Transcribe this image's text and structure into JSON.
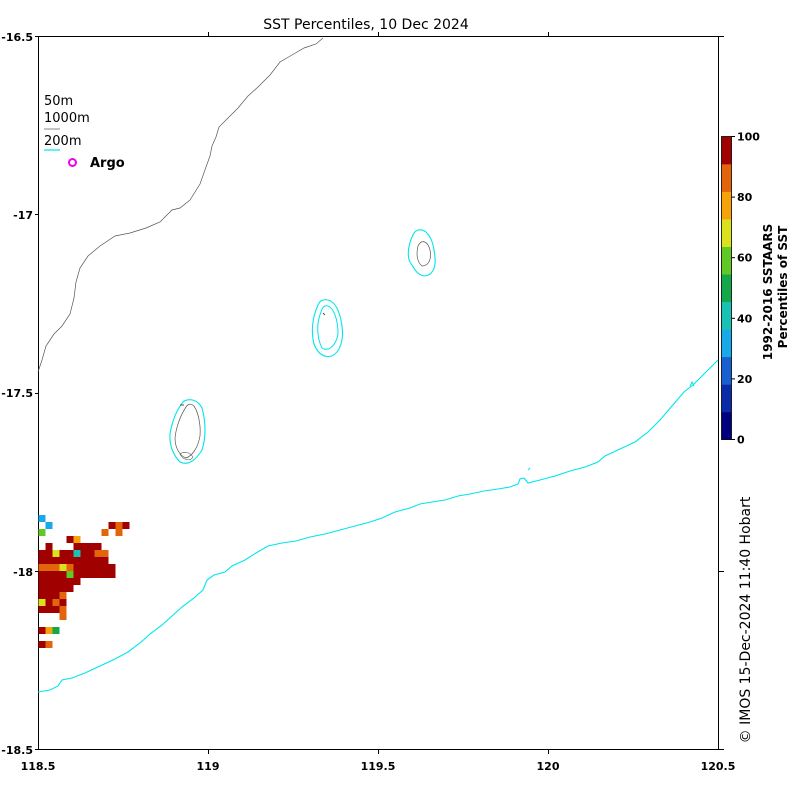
{
  "title": "SST Percentiles, 10 Dec 2024",
  "axes": {
    "x_ticks": [
      "118.5",
      "119",
      "119.5",
      "120",
      "120.5"
    ],
    "y_ticks": [
      "-16.5",
      "-17",
      "-17.5",
      "-18",
      "-18.5"
    ]
  },
  "legend": {
    "depth_50": "50m",
    "depth_1000": "1000m",
    "depth_200": "200m",
    "argo": "Argo"
  },
  "colorbar": {
    "label_line1": "1992-2016 SSTAARS",
    "label_line2": "Percentiles of SST",
    "ticks": [
      "0",
      "20",
      "40",
      "60",
      "80",
      "100"
    ],
    "colors": [
      "#00007f",
      "#0a2aa8",
      "#1a5fd0",
      "#19a8e8",
      "#19c2b4",
      "#15a84a",
      "#62c825",
      "#d9e21c",
      "#f5a20b",
      "#e2640b",
      "#a00000"
    ]
  },
  "credit": "© IMOS 15-Dec-2024 11:40 Hobart",
  "colors": {
    "contour_200": "#00e5ee",
    "coastline": "#555555",
    "argo": "#ee00ee"
  }
}
